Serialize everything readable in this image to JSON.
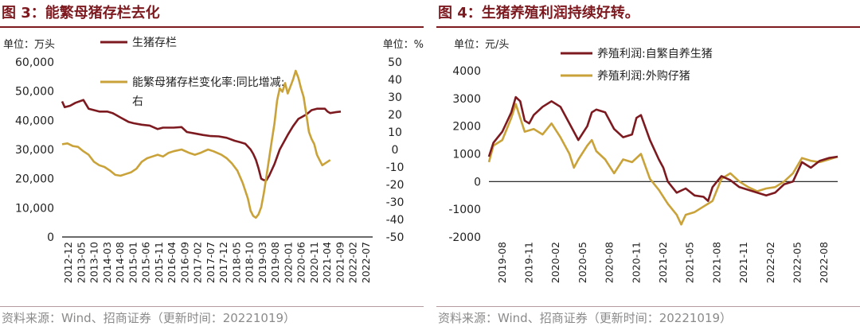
{
  "colors": {
    "dark": "#7d1a20",
    "gold": "#c9a23a",
    "title": "#7d1a20",
    "source": "#8a8a8a"
  },
  "source_text": "资料来源：Wind、招商证券（更新时间：20221019）",
  "chart_data": [
    {
      "id": "fig3",
      "type": "line",
      "title": "图 3：能繁母猪存栏去化",
      "left_unit": "单位：万头",
      "right_unit": "单位：%",
      "y_left": {
        "min": 0,
        "max": 60000,
        "ticks": [
          "0",
          "10,000",
          "20,000",
          "30,000",
          "40,000",
          "50,000",
          "60,000"
        ]
      },
      "y_right": {
        "min": -50,
        "max": 50,
        "ticks": [
          "-50",
          "-40",
          "-30",
          "-20",
          "-10",
          "0",
          "10",
          "20",
          "30",
          "40",
          "50"
        ]
      },
      "x_ticks": [
        "2012-12",
        "2013-05",
        "2013-10",
        "2014-03",
        "2014-08",
        "2015-01",
        "2015-06",
        "2015-11",
        "2016-04",
        "2016-09",
        "2017-02",
        "2017-07",
        "2017-12",
        "2018-05",
        "2018-10",
        "2019-03",
        "2019-08",
        "2020-01",
        "2020-06",
        "2020-11",
        "2021-04",
        "2021-09",
        "2022-02",
        "2022-07"
      ],
      "x_range": [
        0,
        117
      ],
      "legend": [
        "生猪存栏",
        "能繁母猪存栏变化率:同比增减:",
        "右"
      ],
      "series": [
        {
          "name": "生猪存栏",
          "axis": "left",
          "color": "#7d1a20",
          "points": [
            [
              0,
              46500
            ],
            [
              1,
              44500
            ],
            [
              3,
              45000
            ],
            [
              5,
              46000
            ],
            [
              8,
              47000
            ],
            [
              9,
              45500
            ],
            [
              10,
              44000
            ],
            [
              12,
              43500
            ],
            [
              14,
              43000
            ],
            [
              17,
              43000
            ],
            [
              19,
              42500
            ],
            [
              20,
              42000
            ],
            [
              22,
              41000
            ],
            [
              25,
              39500
            ],
            [
              27,
              39000
            ],
            [
              30,
              38500
            ],
            [
              33,
              38200
            ],
            [
              36,
              37000
            ],
            [
              38,
              37500
            ],
            [
              42,
              37500
            ],
            [
              45,
              37700
            ],
            [
              47,
              36000
            ],
            [
              50,
              35500
            ],
            [
              53,
              35000
            ],
            [
              56,
              34600
            ],
            [
              59,
              34500
            ],
            [
              62,
              34000
            ],
            [
              65,
              33000
            ],
            [
              67,
              32500
            ],
            [
              69,
              32000
            ],
            [
              70,
              31000
            ],
            [
              71,
              30000
            ],
            [
              72,
              28500
            ],
            [
              73,
              26500
            ],
            [
              74,
              23500
            ],
            [
              75,
              20000
            ],
            [
              76,
              19500
            ],
            [
              77,
              19500
            ],
            [
              78,
              21000
            ],
            [
              80,
              25000
            ],
            [
              82,
              30000
            ],
            [
              85,
              35000
            ],
            [
              87,
              38000
            ],
            [
              89,
              40500
            ],
            [
              92,
              42000
            ],
            [
              94,
              43500
            ],
            [
              96,
              44000
            ],
            [
              99,
              44000
            ],
            [
              100,
              43000
            ],
            [
              101,
              42500
            ],
            [
              103,
              42800
            ],
            [
              105,
              43000
            ]
          ]
        },
        {
          "name": "能繁母猪存栏变化率:同比增减",
          "axis": "right",
          "color": "#c9a23a",
          "points": [
            [
              0,
              3
            ],
            [
              2,
              3.5
            ],
            [
              4,
              2
            ],
            [
              6,
              1.5
            ],
            [
              8,
              -1
            ],
            [
              10,
              -3
            ],
            [
              12,
              -7
            ],
            [
              14,
              -9
            ],
            [
              16,
              -10
            ],
            [
              18,
              -12
            ],
            [
              20,
              -14.5
            ],
            [
              22,
              -15
            ],
            [
              24,
              -14
            ],
            [
              26,
              -13
            ],
            [
              28,
              -11
            ],
            [
              30,
              -7
            ],
            [
              32,
              -5
            ],
            [
              34,
              -4
            ],
            [
              36,
              -3
            ],
            [
              38,
              -4
            ],
            [
              40,
              -2
            ],
            [
              42,
              -1
            ],
            [
              45,
              0
            ],
            [
              48,
              -2
            ],
            [
              50,
              -3
            ],
            [
              52,
              -2
            ],
            [
              55,
              0
            ],
            [
              57,
              -1
            ],
            [
              60,
              -3
            ],
            [
              62,
              -5
            ],
            [
              64,
              -8
            ],
            [
              66,
              -12
            ],
            [
              68,
              -19
            ],
            [
              70,
              -28
            ],
            [
              71,
              -35
            ],
            [
              72,
              -38
            ],
            [
              73,
              -39
            ],
            [
              74,
              -37
            ],
            [
              75,
              -33
            ],
            [
              76,
              -25
            ],
            [
              77,
              -15
            ],
            [
              78,
              -5
            ],
            [
              79,
              5
            ],
            [
              80,
              15
            ],
            [
              81,
              28
            ],
            [
              82,
              35
            ],
            [
              83,
              33
            ],
            [
              84,
              38
            ],
            [
              85,
              32
            ],
            [
              86,
              36
            ],
            [
              87,
              40
            ],
            [
              88,
              45
            ],
            [
              89,
              41
            ],
            [
              90,
              35
            ],
            [
              91,
              30
            ],
            [
              92,
              20
            ],
            [
              93,
              10
            ],
            [
              94,
              6
            ],
            [
              95,
              3
            ],
            [
              96,
              -3
            ],
            [
              97,
              -6
            ],
            [
              98,
              -9
            ],
            [
              99,
              -8
            ],
            [
              100,
              -7
            ],
            [
              101,
              -6
            ]
          ]
        }
      ]
    },
    {
      "id": "fig4",
      "type": "line",
      "title": "图 4：生猪养殖利润持续好转。",
      "left_unit": "单位：元/头",
      "y_left": {
        "min": -2000,
        "max": 4000,
        "ticks": [
          "-2000",
          "-1000",
          "0",
          "1000",
          "2000",
          "3000",
          "4000"
        ]
      },
      "x_ticks": [
        "2019-08",
        "2019-11",
        "2020-02",
        "2020-05",
        "2020-08",
        "2020-11",
        "2021-02",
        "2021-05",
        "2021-08",
        "2021-11",
        "2022-02",
        "2022-05",
        "2022-08"
      ],
      "x_range": [
        0,
        39
      ],
      "legend": [
        "养殖利润:自繁自养生猪",
        "养殖利润:外购仔猪"
      ],
      "series": [
        {
          "name": "养殖利润:自繁自养生猪",
          "axis": "left",
          "color": "#7d1a20",
          "points": [
            [
              0,
              900
            ],
            [
              0.5,
              1400
            ],
            [
              1.5,
              1800
            ],
            [
              2.5,
              2500
            ],
            [
              3,
              3050
            ],
            [
              3.5,
              2900
            ],
            [
              4,
              2200
            ],
            [
              4.5,
              2100
            ],
            [
              5,
              2400
            ],
            [
              6,
              2700
            ],
            [
              7,
              2900
            ],
            [
              8,
              2700
            ],
            [
              9,
              2100
            ],
            [
              10,
              1500
            ],
            [
              11,
              2000
            ],
            [
              11.5,
              2500
            ],
            [
              12,
              2600
            ],
            [
              13,
              2500
            ],
            [
              14,
              1900
            ],
            [
              15,
              1600
            ],
            [
              16,
              1700
            ],
            [
              16.5,
              2300
            ],
            [
              17,
              2400
            ],
            [
              18,
              1500
            ],
            [
              19,
              800
            ],
            [
              19.5,
              500
            ],
            [
              20,
              0
            ],
            [
              21,
              -400
            ],
            [
              22,
              -250
            ],
            [
              23,
              -500
            ],
            [
              24,
              -550
            ],
            [
              24.5,
              -700
            ],
            [
              25,
              -200
            ],
            [
              25.5,
              0
            ],
            [
              26,
              200
            ],
            [
              27,
              50
            ],
            [
              28,
              -200
            ],
            [
              29,
              -300
            ],
            [
              30,
              -400
            ],
            [
              31,
              -500
            ],
            [
              32,
              -400
            ],
            [
              33,
              -100
            ],
            [
              34,
              0
            ],
            [
              35,
              700
            ],
            [
              36,
              500
            ],
            [
              37,
              750
            ],
            [
              38,
              850
            ],
            [
              39,
              900
            ]
          ]
        },
        {
          "name": "养殖利润:外购仔猪",
          "axis": "left",
          "color": "#c9a23a",
          "points": [
            [
              0,
              700
            ],
            [
              0.5,
              1300
            ],
            [
              1.5,
              1500
            ],
            [
              2.5,
              2300
            ],
            [
              3,
              2800
            ],
            [
              3.5,
              2300
            ],
            [
              4,
              1800
            ],
            [
              5,
              1900
            ],
            [
              6,
              1700
            ],
            [
              7,
              2100
            ],
            [
              8,
              1600
            ],
            [
              9,
              1000
            ],
            [
              9.5,
              500
            ],
            [
              10,
              800
            ],
            [
              11,
              1300
            ],
            [
              11.5,
              1500
            ],
            [
              12,
              1100
            ],
            [
              13,
              800
            ],
            [
              14,
              300
            ],
            [
              15,
              800
            ],
            [
              16,
              700
            ],
            [
              17,
              1000
            ],
            [
              18,
              100
            ],
            [
              19,
              -300
            ],
            [
              20,
              -800
            ],
            [
              21,
              -1200
            ],
            [
              21.5,
              -1550
            ],
            [
              22,
              -1200
            ],
            [
              23,
              -1100
            ],
            [
              24,
              -900
            ],
            [
              25,
              -700
            ],
            [
              26,
              100
            ],
            [
              27,
              300
            ],
            [
              28,
              0
            ],
            [
              29,
              -200
            ],
            [
              30,
              -350
            ],
            [
              31,
              -250
            ],
            [
              32,
              -200
            ],
            [
              33,
              0
            ],
            [
              34,
              300
            ],
            [
              35,
              850
            ],
            [
              36,
              750
            ],
            [
              37,
              700
            ],
            [
              38,
              800
            ],
            [
              39,
              900
            ]
          ]
        }
      ]
    }
  ]
}
